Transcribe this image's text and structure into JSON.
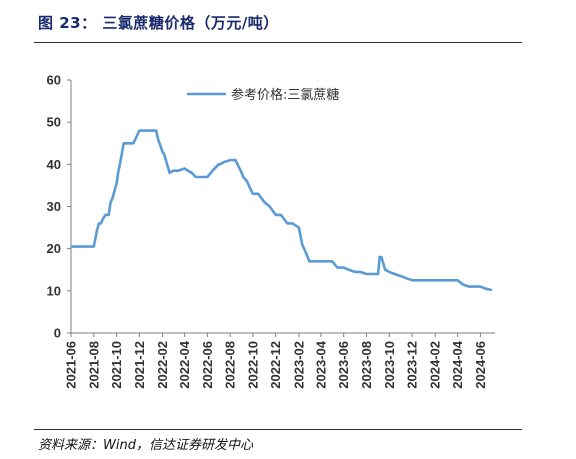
{
  "header": {
    "title": "图 23： 三氯蔗糖价格（万元/吨）"
  },
  "footer": {
    "source": "资料来源：Wind，信达证券研发中心"
  },
  "chart_data": {
    "type": "line",
    "title": "",
    "xlabel": "",
    "ylabel": "",
    "ylim": [
      0,
      60
    ],
    "yticks": [
      "0",
      "10",
      "20",
      "30",
      "40",
      "50",
      "60"
    ],
    "xtick_labels": [
      "2021-06",
      "2021-08",
      "2021-10",
      "2021-12",
      "2022-02",
      "2022-04",
      "2022-06",
      "2022-08",
      "2022-10",
      "2022-12",
      "2023-02",
      "2023-04",
      "2023-06",
      "2023-08",
      "2023-10",
      "2023-12",
      "2024-02",
      "2024-04",
      "2024-06"
    ],
    "legend_position": "top-center",
    "grid": false,
    "line_color": "#5b9bd5",
    "series": [
      {
        "name": "参考价格:三氯蔗糖",
        "x": [
          "2021-06-01",
          "2021-06-15",
          "2021-07-01",
          "2021-07-15",
          "2021-08-01",
          "2021-08-10",
          "2021-08-15",
          "2021-08-20",
          "2021-08-25",
          "2021-09-01",
          "2021-09-10",
          "2021-09-15",
          "2021-09-20",
          "2021-10-01",
          "2021-10-05",
          "2021-10-10",
          "2021-10-20",
          "2021-11-01",
          "2021-11-15",
          "2021-12-01",
          "2021-12-15",
          "2022-01-01",
          "2022-01-15",
          "2022-01-20",
          "2022-02-01",
          "2022-02-05",
          "2022-02-10",
          "2022-02-20",
          "2022-03-01",
          "2022-03-15",
          "2022-04-01",
          "2022-04-10",
          "2022-04-20",
          "2022-05-01",
          "2022-05-15",
          "2022-06-01",
          "2022-06-15",
          "2022-07-01",
          "2022-07-05",
          "2022-07-15",
          "2022-08-01",
          "2022-08-15",
          "2022-09-01",
          "2022-09-05",
          "2022-09-15",
          "2022-09-20",
          "2022-10-01",
          "2022-10-15",
          "2022-11-01",
          "2022-11-15",
          "2022-12-01",
          "2022-12-15",
          "2023-01-01",
          "2023-01-15",
          "2023-02-01",
          "2023-02-10",
          "2023-02-20",
          "2023-03-01",
          "2023-03-15",
          "2023-04-01",
          "2023-04-15",
          "2023-05-01",
          "2023-05-15",
          "2023-06-01",
          "2023-06-15",
          "2023-07-01",
          "2023-07-15",
          "2023-08-01",
          "2023-08-15",
          "2023-09-01",
          "2023-09-05",
          "2023-09-10",
          "2023-09-20",
          "2023-10-01",
          "2023-10-15",
          "2023-11-01",
          "2023-11-15",
          "2023-12-01",
          "2023-12-15",
          "2024-01-01",
          "2024-01-15",
          "2024-02-01",
          "2024-02-15",
          "2024-03-01",
          "2024-03-15",
          "2024-04-01",
          "2024-04-15",
          "2024-05-01",
          "2024-05-15",
          "2024-06-01",
          "2024-06-15",
          "2024-07-01"
        ],
        "values": [
          20.5,
          20.5,
          20.5,
          20.5,
          20.5,
          24.5,
          26.0,
          26.0,
          27.0,
          28.0,
          28.0,
          31.0,
          32.0,
          35.5,
          38.0,
          40.0,
          45.0,
          45.0,
          45.0,
          48.0,
          48.0,
          48.0,
          48.0,
          46.0,
          43.0,
          42.5,
          41.0,
          38.0,
          38.5,
          38.5,
          39.0,
          38.5,
          38.0,
          37.0,
          37.0,
          37.0,
          38.5,
          40.0,
          40.0,
          40.5,
          41.0,
          41.0,
          38.0,
          37.0,
          36.0,
          35.0,
          33.0,
          33.0,
          31.0,
          30.0,
          28.0,
          28.0,
          26.0,
          26.0,
          25.0,
          21.0,
          19.0,
          17.0,
          17.0,
          17.0,
          17.0,
          17.0,
          15.5,
          15.5,
          15.0,
          14.5,
          14.5,
          14.0,
          14.0,
          14.0,
          18.0,
          18.0,
          15.0,
          14.5,
          14.0,
          13.5,
          13.0,
          12.5,
          12.5,
          12.5,
          12.5,
          12.5,
          12.5,
          12.5,
          12.5,
          12.5,
          11.5,
          11.0,
          11.0,
          11.0,
          10.5,
          10.2
        ]
      }
    ]
  }
}
